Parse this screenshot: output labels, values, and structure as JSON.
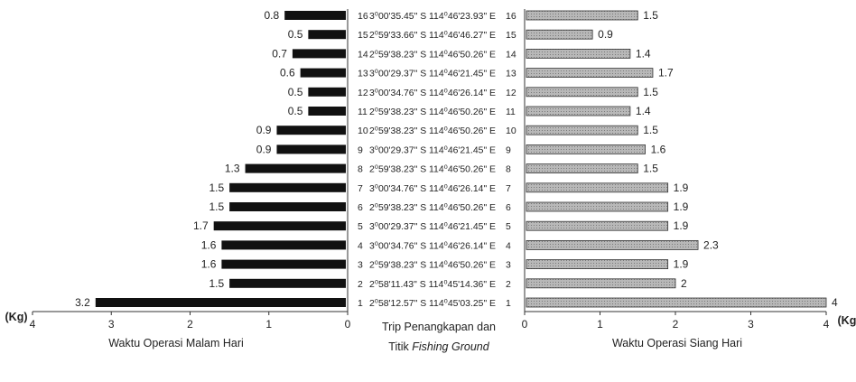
{
  "chart_data": {
    "type": "bar",
    "layout": "butterfly",
    "trips": [
      {
        "trip": "1",
        "location": "2⁰58'12.57\" S 114⁰45'03.25\" E",
        "night": 3.2,
        "day": 4
      },
      {
        "trip": "2",
        "location": "2⁰58'11.43\" S 114⁰45'14.36\" E",
        "night": 1.5,
        "day": 2
      },
      {
        "trip": "3",
        "location": "2⁰59'38.23\" S 114⁰46'50.26\" E",
        "night": 1.6,
        "day": 1.9
      },
      {
        "trip": "4",
        "location": "3⁰00'34.76\" S 114⁰46'26.14\" E",
        "night": 1.6,
        "day": 2.3
      },
      {
        "trip": "5",
        "location": "3⁰00'29.37\" S 114⁰46'21.45\" E",
        "night": 1.7,
        "day": 1.9
      },
      {
        "trip": "6",
        "location": "2⁰59'38.23\" S 114⁰46'50.26\" E",
        "night": 1.5,
        "day": 1.9
      },
      {
        "trip": "7",
        "location": "3⁰00'34.76\" S 114⁰46'26.14\" E",
        "night": 1.5,
        "day": 1.9
      },
      {
        "trip": "8",
        "location": "2⁰59'38.23\" S 114⁰46'50.26\" E",
        "night": 1.3,
        "day": 1.5
      },
      {
        "trip": "9",
        "location": "3⁰00'29.37\" S 114⁰46'21.45\" E",
        "night": 0.9,
        "day": 1.6
      },
      {
        "trip": "10",
        "location": "2⁰59'38.23\" S 114⁰46'50.26\" E",
        "night": 0.9,
        "day": 1.5
      },
      {
        "trip": "11",
        "location": "2⁰59'38.23\" S 114⁰46'50.26\" E",
        "night": 0.5,
        "day": 1.4
      },
      {
        "trip": "12",
        "location": "3⁰00'34.76\" S 114⁰46'26.14\" E",
        "night": 0.5,
        "day": 1.5
      },
      {
        "trip": "13",
        "location": "3⁰00'29.37\" S 114⁰46'21.45\" E",
        "night": 0.6,
        "day": 1.7
      },
      {
        "trip": "14",
        "location": "2⁰59'38.23\" S 114⁰46'50.26\" E",
        "night": 0.7,
        "day": 1.4
      },
      {
        "trip": "15",
        "location": "2⁰59'33.66\" S 114⁰46'46.27\" E",
        "night": 0.5,
        "day": 0.9
      },
      {
        "trip": "16",
        "location": "3⁰00'35.45\" S 114⁰46'23.93\" E",
        "night": 0.8,
        "day": 1.5
      }
    ],
    "left_axis": {
      "label": "Waktu Operasi Malam Hari",
      "unit": "(Kg)",
      "ticks": [
        "4",
        "3",
        "2",
        "1",
        "0"
      ],
      "range": [
        0,
        4
      ],
      "direction": "reversed"
    },
    "right_axis": {
      "label": "Waktu Operasi Siang Hari",
      "unit": "(Kg)",
      "ticks": [
        "0",
        "1",
        "2",
        "3",
        "4"
      ],
      "range": [
        0,
        4
      ]
    },
    "center_label_line1": "Trip Penangkapan  dan",
    "center_label_line2_plain": "Titik ",
    "center_label_line2_italic": "Fishing Ground",
    "colors": {
      "night": "#111111",
      "day": "#a9a9a9",
      "day_stroke": "#333333"
    }
  }
}
